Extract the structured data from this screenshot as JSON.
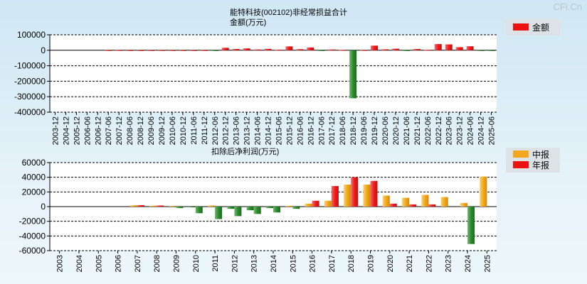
{
  "watermark": "CFi.Cn",
  "chart_data": [
    {
      "type": "bar",
      "title": "能特科技(002102)非经常损益合计",
      "subtitle": "金额(万元)",
      "legend": [
        "金额"
      ],
      "legend_position": "top-right",
      "ylim": [
        -400000,
        100000
      ],
      "yticks": [
        100000,
        0,
        -100000,
        -200000,
        -300000,
        -400000
      ],
      "ytick_labels": [
        "100000",
        "0",
        "-100000",
        "-200000",
        "-300000",
        "-400000"
      ],
      "categories": [
        "2003-12",
        "2004-12",
        "2005-12",
        "2006-06",
        "2006-12",
        "2007-06",
        "2007-12",
        "2008-06",
        "2008-12",
        "2009-06",
        "2009-12",
        "2010-06",
        "2010-12",
        "2011-06",
        "2011-12",
        "2012-06",
        "2012-12",
        "2013-06",
        "2013-12",
        "2014-06",
        "2014-12",
        "2015-06",
        "2015-12",
        "2016-06",
        "2016-12",
        "2017-06",
        "2017-12",
        "2018-06",
        "2018-12",
        "2019-06",
        "2019-12",
        "2020-06",
        "2020-12",
        "2021-06",
        "2021-12",
        "2022-06",
        "2022-12",
        "2023-06",
        "2023-12",
        "2024-06",
        "2024-12",
        "2025-06"
      ],
      "values": [
        0,
        0,
        0,
        0,
        0,
        500,
        800,
        300,
        200,
        400,
        600,
        500,
        400,
        300,
        500,
        -1000,
        16000,
        8000,
        12000,
        5000,
        9000,
        4000,
        25000,
        7000,
        18000,
        -4000,
        5000,
        2000,
        -310000,
        1000,
        30000,
        6000,
        10000,
        -3000,
        8000,
        3000,
        40000,
        38000,
        20000,
        26000,
        -2000,
        -3000
      ]
    },
    {
      "type": "bar",
      "title": "扣除后净利润(万元)",
      "legend": [
        "中报",
        "年报"
      ],
      "legend_position": "top-right",
      "ylim": [
        -60000,
        60000
      ],
      "yticks": [
        60000,
        40000,
        20000,
        0,
        -20000,
        -40000,
        -60000
      ],
      "ytick_labels": [
        "60000",
        "40000",
        "20000",
        "0",
        "-20000",
        "-40000",
        "-60000"
      ],
      "categories": [
        "2003",
        "2004",
        "2005",
        "2006",
        "2007",
        "2008",
        "2009",
        "2010",
        "2011",
        "2012",
        "2013",
        "2014",
        "2015",
        "2016",
        "2017",
        "2018",
        "2019",
        "2020",
        "2021",
        "2022",
        "2023",
        "2024",
        "2025"
      ],
      "series": [
        {
          "name": "中报",
          "values": [
            null,
            null,
            null,
            null,
            1800,
            1200,
            1000,
            -800,
            1500,
            -3000,
            -5000,
            -2000,
            1200,
            4000,
            8000,
            30000,
            30000,
            15000,
            12000,
            16000,
            13000,
            5000,
            41000
          ]
        },
        {
          "name": "年报",
          "values": [
            null,
            null,
            null,
            0,
            2000,
            1500,
            -2000,
            -9000,
            -17000,
            -13000,
            -10000,
            -8000,
            -3000,
            8000,
            28000,
            40000,
            35000,
            4000,
            3000,
            3000,
            0,
            -51000,
            null
          ]
        }
      ]
    }
  ]
}
